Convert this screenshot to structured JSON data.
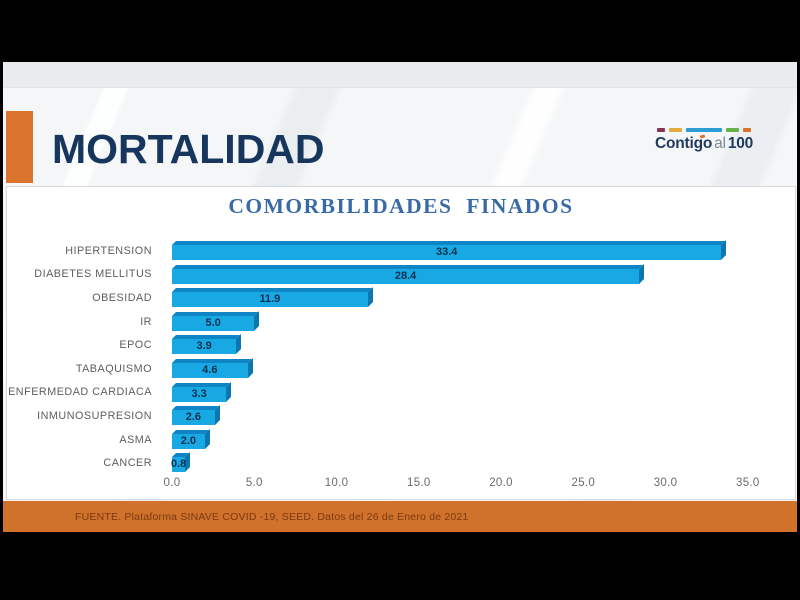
{
  "header": {
    "title": "MORTALIDAD",
    "accent_color": "#d9732e",
    "logo": {
      "part1": "Contigo",
      "part2": "al",
      "part3": "100",
      "dash_colors": [
        "#82354f",
        "#e5a93d",
        "#2f9cd8",
        "#67b14b",
        "#d4742c"
      ]
    }
  },
  "chart_data": {
    "type": "bar",
    "orientation": "horizontal",
    "title": "COMORBILIDADES FINADOS",
    "categories": [
      "HIPERTENSION",
      "DIABETES MELLITUS",
      "OBESIDAD",
      "IR",
      "EPOC",
      "TABAQUISMO",
      "ENFERMEDAD CARDIACA",
      "INMUNOSUPRESION",
      "ASMA",
      "CANCER"
    ],
    "values": [
      33.4,
      28.4,
      11.9,
      5.0,
      3.9,
      4.6,
      3.3,
      2.6,
      2.0,
      0.8
    ],
    "xlabel": "",
    "ylabel": "",
    "xlim": [
      0,
      36
    ],
    "x_ticks": [
      0,
      5,
      10,
      15,
      20,
      25,
      30,
      35
    ],
    "grid": false,
    "legend": null,
    "value_labels": "inside-center",
    "bar_color": "#18a8e4",
    "bar_top_color": "#0f85c5",
    "bar_side_color": "#0c77ae",
    "value_label_color": "#0b3150",
    "title_color": "#3a6aa6"
  },
  "footer": {
    "source": "FUENTE. Plataforma SINAVE COVID -19, SEED. Datos del 26 de Enero de 2021",
    "bg_color": "#d0722c"
  }
}
